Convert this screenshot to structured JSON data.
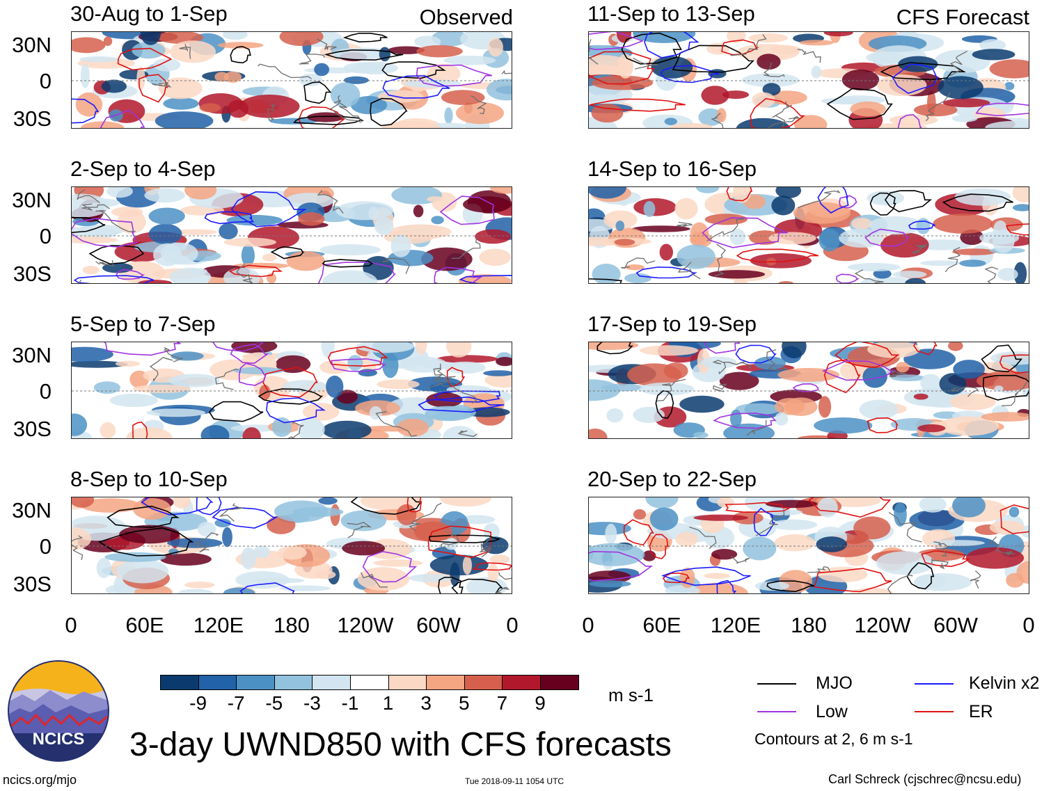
{
  "title": "3-day UWND850 with CFS forecasts",
  "headers": {
    "observed": "Observed",
    "forecast": "CFS Forecast"
  },
  "left_panels": [
    {
      "dates": "30-Aug to 1-Sep"
    },
    {
      "dates": "2-Sep to 4-Sep"
    },
    {
      "dates": "5-Sep to 7-Sep"
    },
    {
      "dates": "8-Sep to 10-Sep"
    }
  ],
  "right_panels": [
    {
      "dates": "11-Sep to 13-Sep"
    },
    {
      "dates": "14-Sep to 16-Sep"
    },
    {
      "dates": "17-Sep to 19-Sep"
    },
    {
      "dates": "20-Sep to 22-Sep"
    }
  ],
  "lat_labels": [
    "30N",
    "0",
    "30S"
  ],
  "lon_labels": [
    "0",
    "60E",
    "120E",
    "180",
    "120W",
    "60W",
    "0"
  ],
  "colorbar": {
    "colors": [
      "#0b3b6e",
      "#2162a8",
      "#4c91c4",
      "#92c2de",
      "#d2e5f0",
      "#ffffff",
      "#fbd8c4",
      "#f4a582",
      "#d6604d",
      "#b2182b",
      "#67001f"
    ],
    "labels": [
      "-9",
      "-7",
      "-5",
      "-3",
      "-1",
      "1",
      "3",
      "5",
      "7",
      "9"
    ],
    "units": "m s-1"
  },
  "legend": {
    "items": [
      {
        "label": "MJO",
        "color": "#000000"
      },
      {
        "label": "Kelvin x2",
        "color": "#1a1aff"
      },
      {
        "label": "Low",
        "color": "#a033e0"
      },
      {
        "label": "ER",
        "color": "#e01010"
      }
    ],
    "note": "Contours at 2, 6 m s-1"
  },
  "logo": {
    "text": "NCICS"
  },
  "footer": {
    "url": "ncics.org/mjo",
    "timestamp": "Tue 2018-09-11 1054 UTC",
    "author": "Carl Schreck (cjschrec@ncsu.edu)"
  }
}
